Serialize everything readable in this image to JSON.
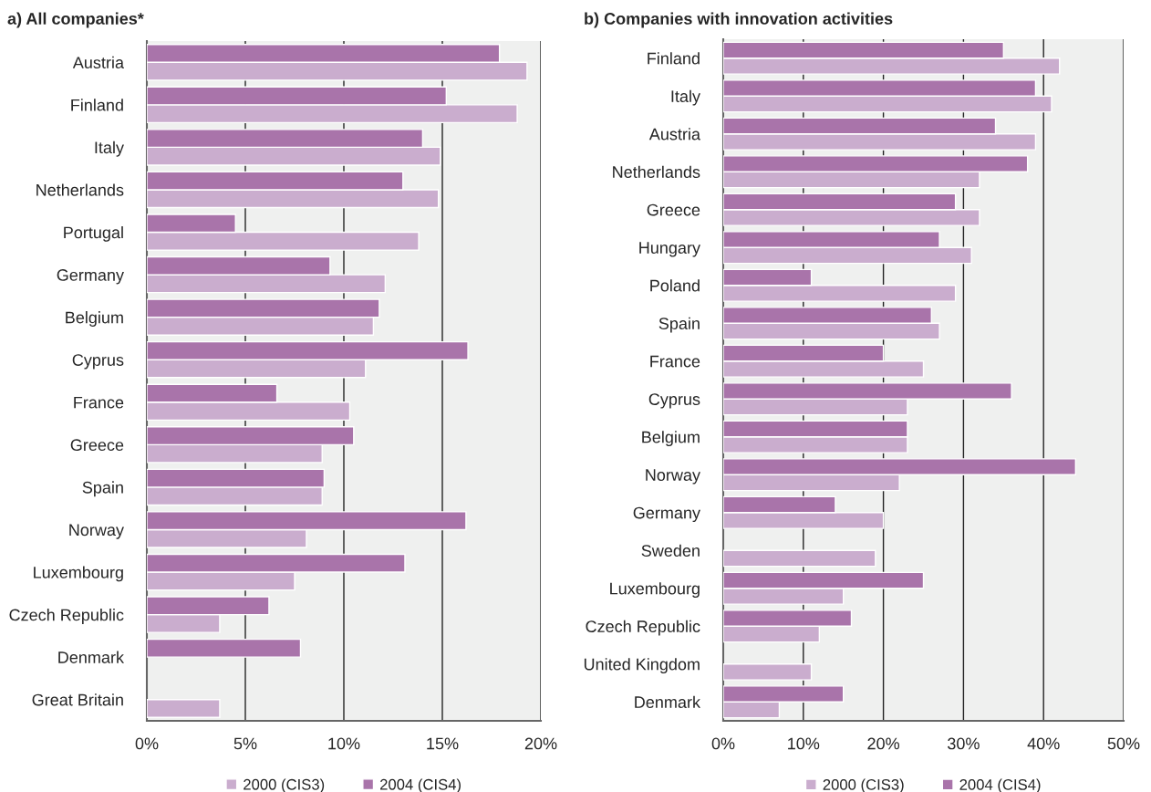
{
  "chart_data": [
    {
      "type": "bar",
      "orientation": "horizontal",
      "title": "a) All companies*",
      "categories": [
        "Austria",
        "Finland",
        "Italy",
        "Netherlands",
        "Portugal",
        "Germany",
        "Belgium",
        "Cyprus",
        "France",
        "Greece",
        "Spain",
        "Norway",
        "Luxembourg",
        "Czech Republic",
        "Denmark",
        "Great Britain"
      ],
      "series": [
        {
          "name": "2000 (CIS3)",
          "color": "#caadce",
          "values": [
            19.3,
            18.8,
            14.9,
            14.8,
            13.8,
            12.1,
            11.5,
            11.1,
            10.3,
            8.9,
            8.9,
            8.1,
            7.5,
            3.7,
            null,
            3.7
          ]
        },
        {
          "name": "2004 (CIS4)",
          "color": "#a974aa",
          "values": [
            17.9,
            15.2,
            14.0,
            13.0,
            4.5,
            9.3,
            11.8,
            16.3,
            6.6,
            10.5,
            9.0,
            16.2,
            13.1,
            6.2,
            7.8,
            null
          ]
        }
      ],
      "xlim": [
        0,
        20
      ],
      "xticks": [
        {
          "value": 0,
          "label": "0%"
        },
        {
          "value": 5,
          "label": "5%"
        },
        {
          "value": 10,
          "label": "10%"
        },
        {
          "value": 15,
          "label": "15%"
        },
        {
          "value": 20,
          "label": "20%"
        }
      ],
      "grid": "x",
      "legend": "bottom"
    },
    {
      "type": "bar",
      "orientation": "horizontal",
      "title": "b) Companies with innovation activities",
      "categories": [
        "Finland",
        "Italy",
        "Austria",
        "Netherlands",
        "Greece",
        "Hungary",
        "Poland",
        "Spain",
        "France",
        "Cyprus",
        "Belgium",
        "Norway",
        "Germany",
        "Sweden",
        "Luxembourg",
        "Czech Republic",
        "United Kingdom",
        "Denmark"
      ],
      "series": [
        {
          "name": "2000 (CIS3)",
          "color": "#caadce",
          "values": [
            42,
            41,
            39,
            32,
            32,
            31,
            29,
            27,
            25,
            23,
            23,
            22,
            20,
            19,
            15,
            12,
            11,
            7
          ]
        },
        {
          "name": "2004 (CIS4)",
          "color": "#a974aa",
          "values": [
            35,
            39,
            34,
            38,
            29,
            27,
            11,
            26,
            20,
            36,
            23,
            44,
            14,
            null,
            25,
            16,
            null,
            15
          ]
        }
      ],
      "xlim": [
        0,
        50
      ],
      "xticks": [
        {
          "value": 0,
          "label": "0%"
        },
        {
          "value": 10,
          "label": "10%"
        },
        {
          "value": 20,
          "label": "20%"
        },
        {
          "value": 30,
          "label": "30%"
        },
        {
          "value": 40,
          "label": "40%"
        },
        {
          "value": 50,
          "label": "50%"
        }
      ],
      "grid": "x",
      "legend": "bottom"
    }
  ]
}
